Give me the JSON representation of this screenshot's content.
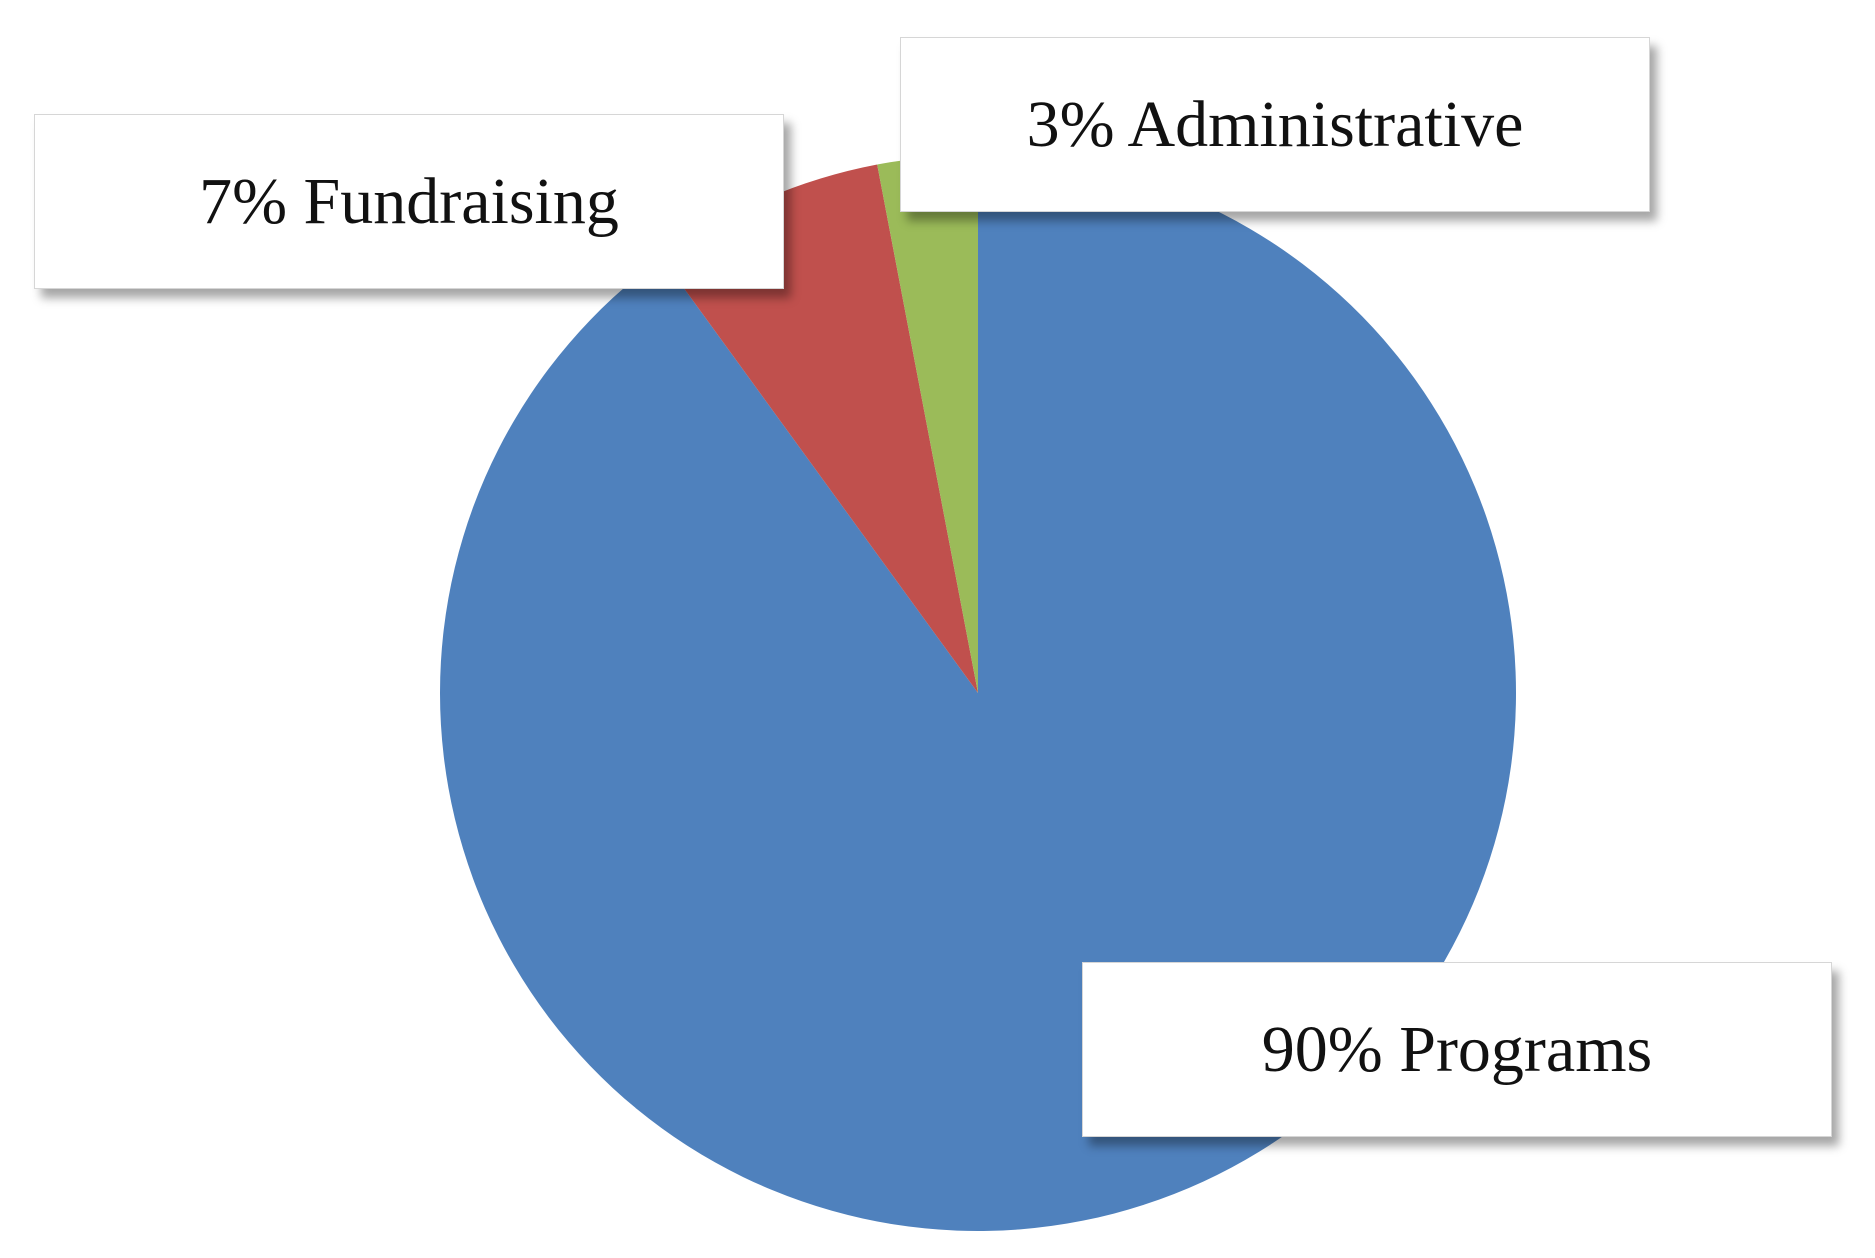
{
  "chart_data": {
    "type": "pie",
    "categories": [
      "Programs",
      "Fundraising",
      "Administrative"
    ],
    "values": [
      90,
      7,
      3
    ],
    "unit": "%",
    "colors": [
      "#4f81bd",
      "#c0504d",
      "#9bbb59"
    ],
    "data_labels": [
      "90% Programs",
      "7% Fundraising",
      "3% Administrative"
    ],
    "start_angle": "12 o'clock",
    "direction": "clockwise",
    "legend": "none"
  }
}
